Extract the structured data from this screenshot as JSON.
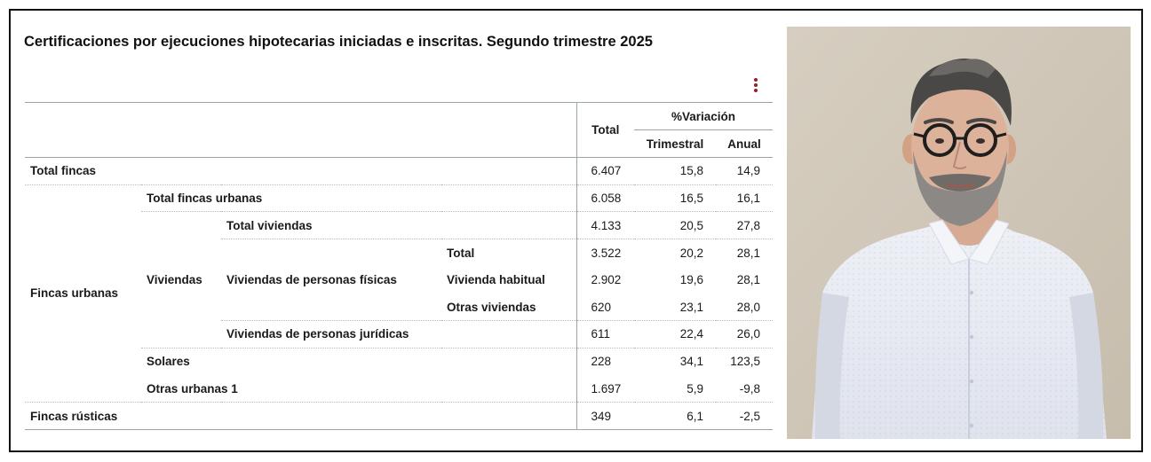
{
  "title": "Certificaciones por ejecuciones hipotecarias iniciadas e inscritas. Segundo trimestre 2025",
  "header": {
    "total": "Total",
    "variacion": "%Variación",
    "trimestral": "Trimestral",
    "anual": "Anual"
  },
  "rows": {
    "total_fincas": {
      "label": "Total fincas",
      "total": "6.407",
      "trim": "15,8",
      "anual": "14,9"
    },
    "fincas_urbanas_label": "Fincas urbanas",
    "total_fincas_urbanas": {
      "label": "Total fincas urbanas",
      "total": "6.058",
      "trim": "16,5",
      "anual": "16,1"
    },
    "total_viviendas": {
      "label": "Total viviendas",
      "total": "4.133",
      "trim": "20,5",
      "anual": "27,8"
    },
    "viviendas_label": "Viviendas",
    "personas_fisicas_label": "Viviendas de personas físicas",
    "pf_total": {
      "label": "Total",
      "total": "3.522",
      "trim": "20,2",
      "anual": "28,1"
    },
    "pf_habitual": {
      "label": "Vivienda habitual",
      "total": "2.902",
      "trim": "19,6",
      "anual": "28,1"
    },
    "pf_otras": {
      "label": "Otras viviendas",
      "total": "620",
      "trim": "23,1",
      "anual": "28,0"
    },
    "personas_juridicas": {
      "label": "Viviendas de personas jurídicas",
      "total": "611",
      "trim": "22,4",
      "anual": "26,0"
    },
    "solares": {
      "label": "Solares",
      "total": "228",
      "trim": "34,1",
      "anual": "123,5"
    },
    "otras_urbanas": {
      "label": "Otras urbanas 1",
      "total": "1.697",
      "trim": "5,9",
      "anual": "-9,8"
    },
    "fincas_rusticas": {
      "label": "Fincas rústicas",
      "total": "349",
      "trim": "6,1",
      "anual": "-2,5"
    }
  },
  "icons": {
    "menu": "kebab-menu-icon"
  },
  "colors": {
    "accent": "#9b1b30",
    "rule": "#9aa6a2"
  }
}
